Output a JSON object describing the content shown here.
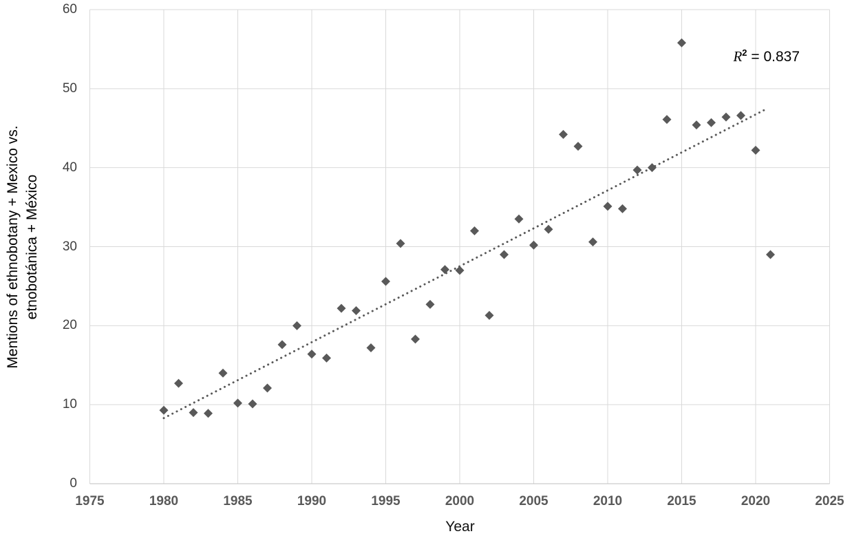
{
  "chart_data": {
    "type": "scatter",
    "title": "",
    "xlabel": "Year",
    "ylabel_lines": [
      "Mentions of ethnobotany + Mexico vs.",
      "etnobotánica + México"
    ],
    "r2_annotation": {
      "symbol": "R",
      "superscript": "2",
      "value": " = 0.837"
    },
    "xlim": [
      1975,
      2025
    ],
    "ylim": [
      0,
      60
    ],
    "x_ticks": [
      1975,
      1980,
      1985,
      1990,
      1995,
      2000,
      2005,
      2010,
      2015,
      2020,
      2025
    ],
    "y_ticks": [
      0,
      10,
      20,
      30,
      40,
      50,
      60
    ],
    "grid": true,
    "legend_position": "none",
    "marker": {
      "shape": "diamond",
      "color": "#595959",
      "size": 13
    },
    "gridline_color": "#d9d9d9",
    "axis_line_color": "#bfbfbf",
    "series": [
      {
        "name": "mentions",
        "points": [
          [
            1980,
            9.3
          ],
          [
            1981,
            12.7
          ],
          [
            1982,
            9.0
          ],
          [
            1983,
            8.9
          ],
          [
            1984,
            14.0
          ],
          [
            1985,
            10.2
          ],
          [
            1986,
            10.1
          ],
          [
            1987,
            12.1
          ],
          [
            1988,
            17.6
          ],
          [
            1989,
            20.0
          ],
          [
            1990,
            16.4
          ],
          [
            1991,
            15.9
          ],
          [
            1992,
            22.2
          ],
          [
            1993,
            21.9
          ],
          [
            1994,
            17.2
          ],
          [
            1995,
            25.6
          ],
          [
            1996,
            30.4
          ],
          [
            1997,
            18.3
          ],
          [
            1998,
            22.7
          ],
          [
            1999,
            27.1
          ],
          [
            2000,
            27.0
          ],
          [
            2001,
            32.0
          ],
          [
            2002,
            21.3
          ],
          [
            2003,
            29.0
          ],
          [
            2004,
            33.5
          ],
          [
            2005,
            30.2
          ],
          [
            2006,
            32.2
          ],
          [
            2007,
            44.2
          ],
          [
            2008,
            42.7
          ],
          [
            2009,
            30.6
          ],
          [
            2010,
            35.1
          ],
          [
            2011,
            34.8
          ],
          [
            2012,
            39.7
          ],
          [
            2013,
            40.0
          ],
          [
            2014,
            46.1
          ],
          [
            2015,
            55.8
          ],
          [
            2016,
            45.4
          ],
          [
            2017,
            45.7
          ],
          [
            2018,
            46.4
          ],
          [
            2019,
            46.6
          ],
          [
            2020,
            42.2
          ],
          [
            2021,
            29.0
          ]
        ]
      }
    ],
    "trendline": {
      "style": "dotted",
      "color": "#595959",
      "start": [
        1980,
        8.3
      ],
      "end": [
        2020.8,
        47.5
      ]
    }
  }
}
